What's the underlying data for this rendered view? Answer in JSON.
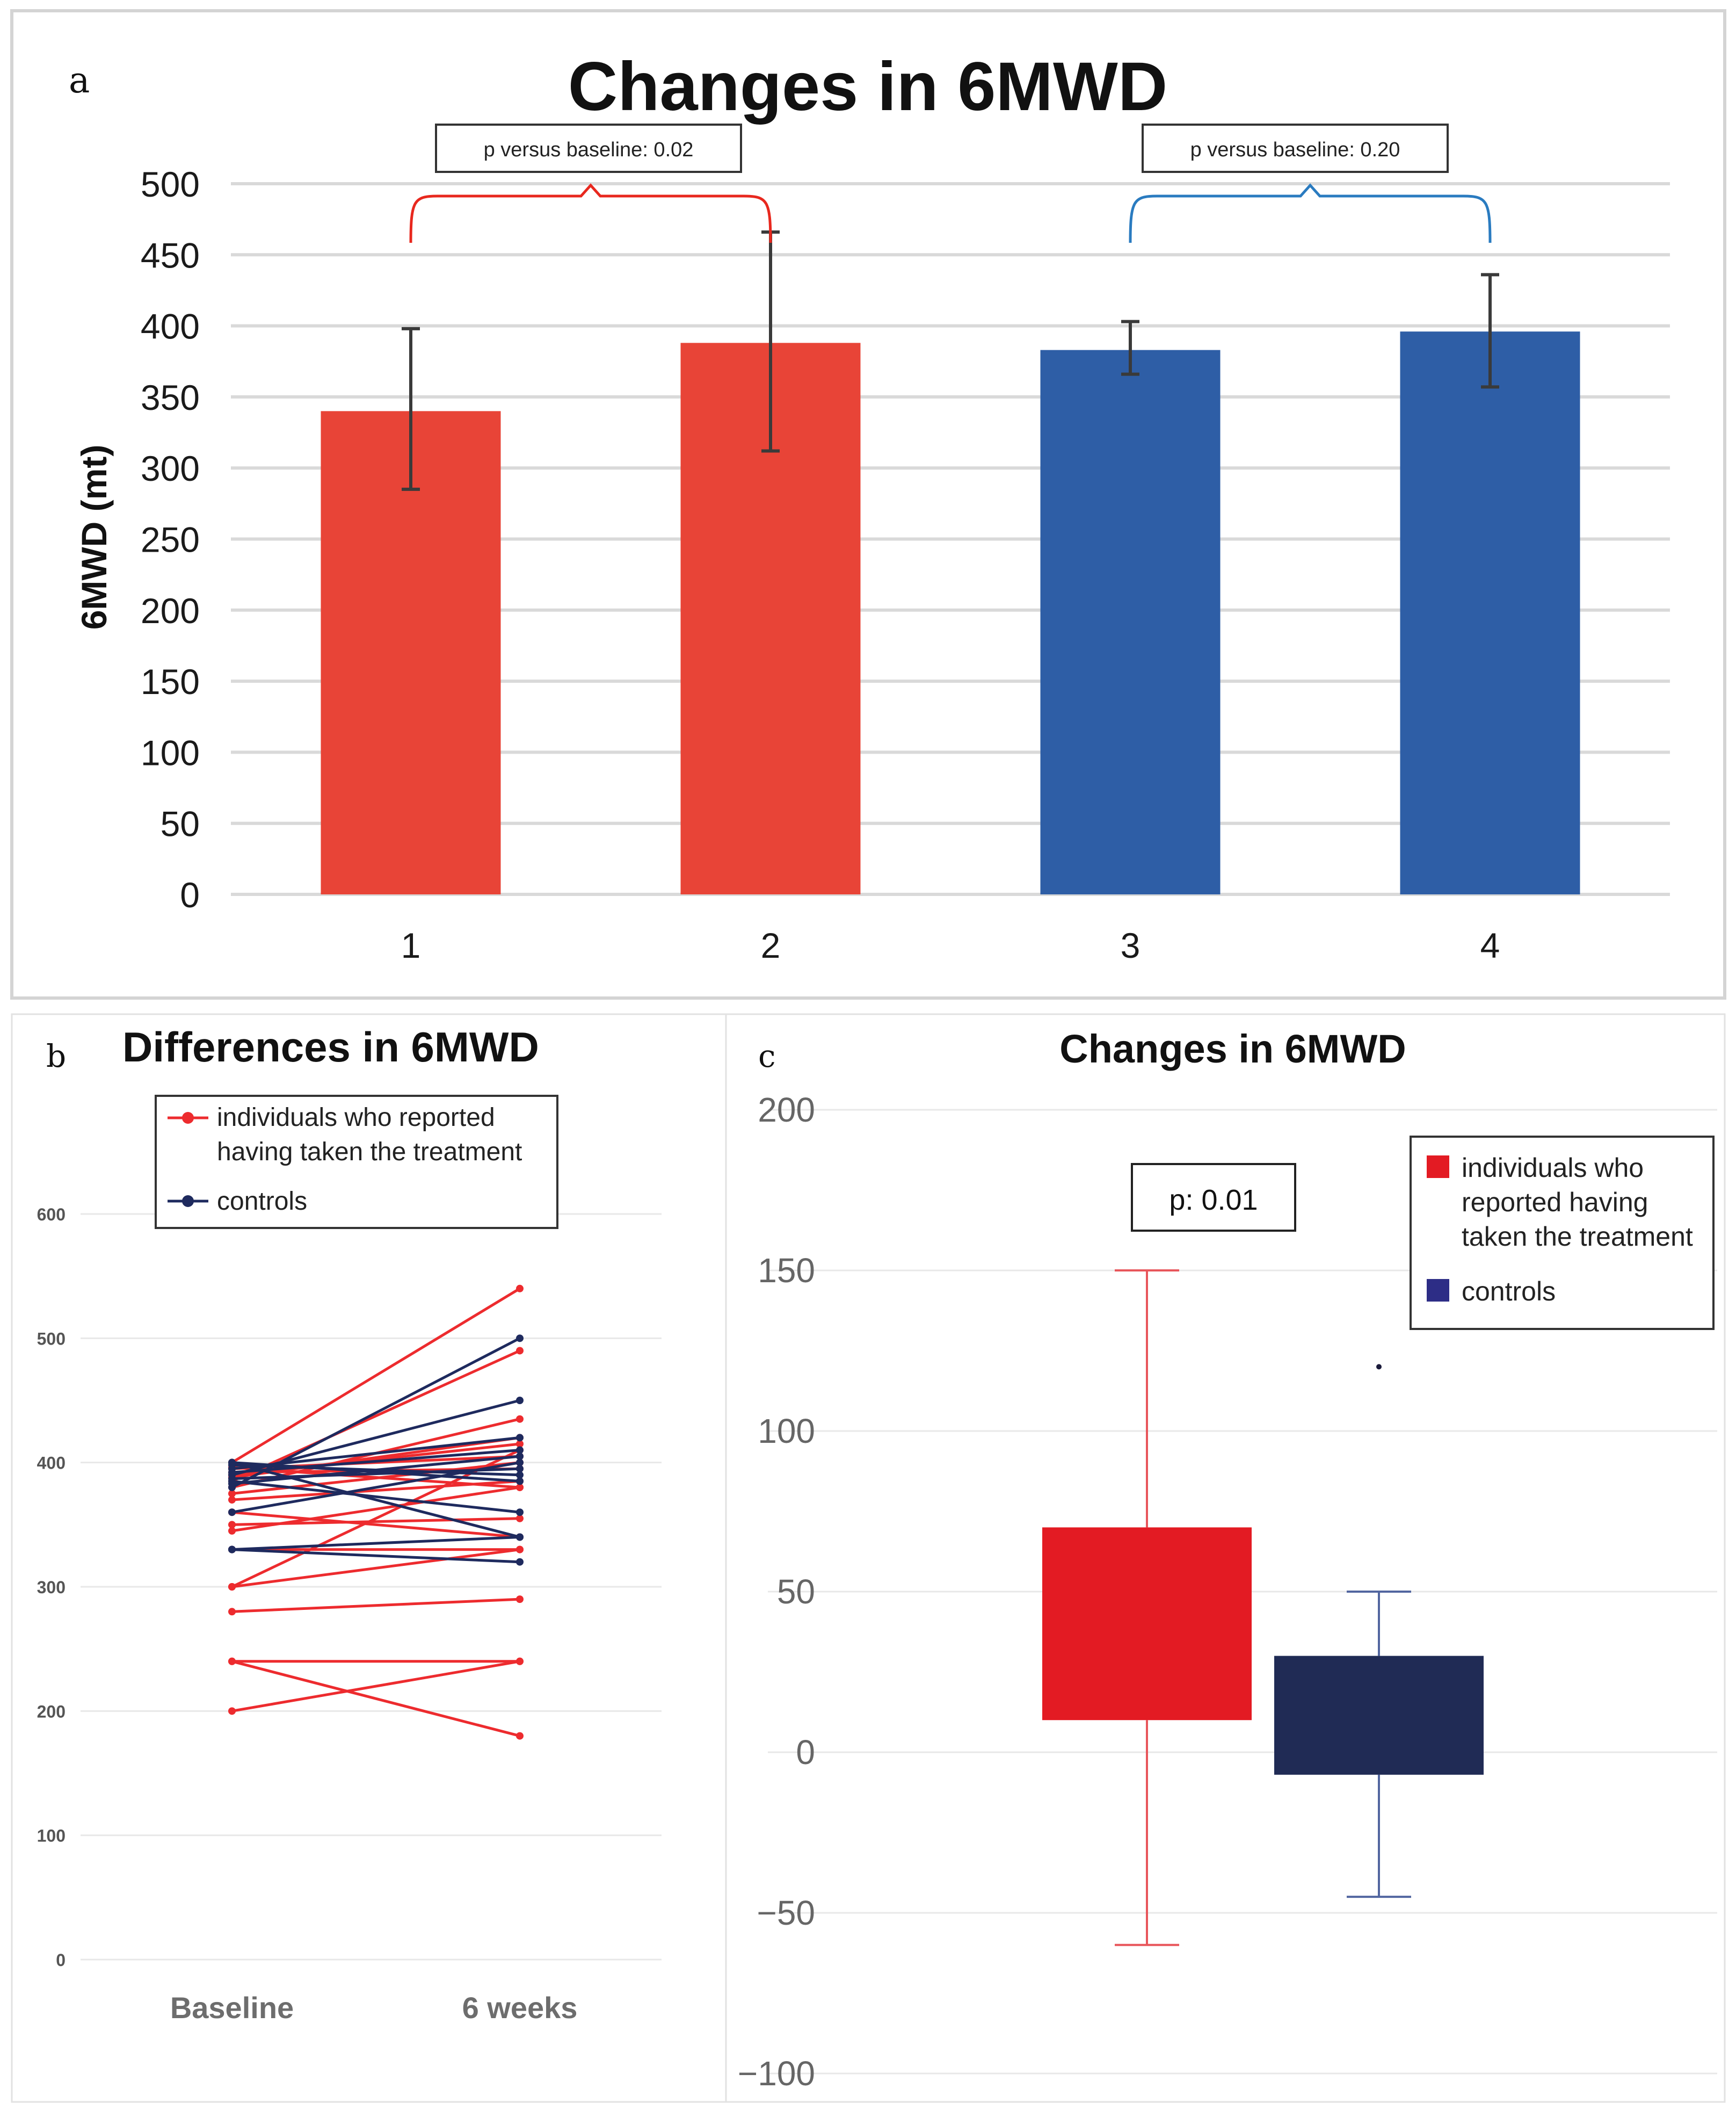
{
  "panel_labels": {
    "a": "a",
    "b": "b",
    "c": "c"
  },
  "colors": {
    "red": "#e84437",
    "blue": "#2e5ea6",
    "line_red": "#ed2b2e",
    "line_navy": "#1e2a5e",
    "box_red": "#e31b23",
    "box_navy": "#202b55",
    "legend_blue": "#2d2d86"
  },
  "chart_data": [
    {
      "id": "panel-a",
      "type": "bar",
      "title": "Changes in 6MWD",
      "xlabel": "",
      "ylabel": "6MWD (mt)",
      "ylim": [
        0,
        500
      ],
      "yticks": [
        0,
        50,
        100,
        150,
        200,
        250,
        300,
        350,
        400,
        450,
        500
      ],
      "grid": true,
      "categories": [
        "1",
        "2",
        "3",
        "4"
      ],
      "values": [
        340,
        388,
        383,
        396
      ],
      "error_low": [
        285,
        312,
        366,
        357
      ],
      "error_high": [
        398,
        466,
        403,
        436
      ],
      "bar_colors": [
        "#e84437",
        "#e84437",
        "#2e5ea6",
        "#2e5ea6"
      ],
      "annotations": [
        {
          "text": "p versus baseline: 0.02",
          "bars": [
            "1",
            "2"
          ],
          "color": "#e8281e"
        },
        {
          "text": "p versus baseline: 0.20",
          "bars": [
            "3",
            "4"
          ],
          "color": "#2a7bc0"
        }
      ]
    },
    {
      "id": "panel-b",
      "type": "line",
      "title": "Differences in 6MWD",
      "xlabel": "",
      "ylabel": "",
      "categories": [
        "Baseline",
        "6 weeks"
      ],
      "ylim": [
        0,
        600
      ],
      "yticks": [
        0,
        100,
        200,
        300,
        400,
        500,
        600
      ],
      "grid": true,
      "legend": [
        "individuals who reported having taken the treatment",
        "controls"
      ],
      "legend_lines": [
        [
          "individuals who reported",
          "having taken the treatment"
        ],
        [
          "controls"
        ]
      ],
      "legend_position": "top",
      "series": [
        {
          "name": "individuals who reported having taken the treatment",
          "color": "#ed2b2e",
          "pairs": [
            [
              200,
              240
            ],
            [
              240,
              180
            ],
            [
              240,
              240
            ],
            [
              280,
              290
            ],
            [
              300,
              330
            ],
            [
              300,
              410
            ],
            [
              330,
              330
            ],
            [
              345,
              380
            ],
            [
              350,
              355
            ],
            [
              360,
              340
            ],
            [
              370,
              385
            ],
            [
              375,
              400
            ],
            [
              380,
              435
            ],
            [
              385,
              490
            ],
            [
              390,
              415
            ],
            [
              395,
              405
            ],
            [
              400,
              540
            ],
            [
              392,
              395
            ],
            [
              388,
              420
            ],
            [
              396,
              380
            ]
          ]
        },
        {
          "name": "controls",
          "color": "#1e2a5e",
          "pairs": [
            [
              330,
              320
            ],
            [
              330,
              340
            ],
            [
              360,
              400
            ],
            [
              380,
              500
            ],
            [
              385,
              360
            ],
            [
              390,
              450
            ],
            [
              392,
              410
            ],
            [
              395,
              420
            ],
            [
              398,
              390
            ],
            [
              400,
              385
            ],
            [
              400,
              340
            ],
            [
              387,
              395
            ],
            [
              383,
              405
            ]
          ]
        }
      ]
    },
    {
      "id": "panel-c",
      "type": "box",
      "title": "Changes in  6MWD",
      "xlabel": "",
      "ylabel": "",
      "ylim": [
        -100,
        200
      ],
      "yticks": [
        -100,
        -50,
        0,
        50,
        100,
        150,
        200
      ],
      "grid": true,
      "annotation": "p: 0.01",
      "legend": [
        "individuals who reported having taken the treatment",
        "controls"
      ],
      "legend_lines": [
        [
          "individuals who",
          "reported having",
          "taken the treatment"
        ],
        [
          "controls"
        ]
      ],
      "legend_position": "top-right",
      "series": [
        {
          "name": "individuals who reported having taken the treatment",
          "color": "#e31b23",
          "whisker_color": "#e8565b",
          "q1": 10,
          "q3": 70,
          "whisker_low": -60,
          "whisker_high": 150,
          "outliers": []
        },
        {
          "name": "controls",
          "color": "#202b55",
          "whisker_color": "#5266a0",
          "q1": -7,
          "q3": 30,
          "whisker_low": -45,
          "whisker_high": 50,
          "outliers": [
            120
          ]
        }
      ]
    }
  ]
}
